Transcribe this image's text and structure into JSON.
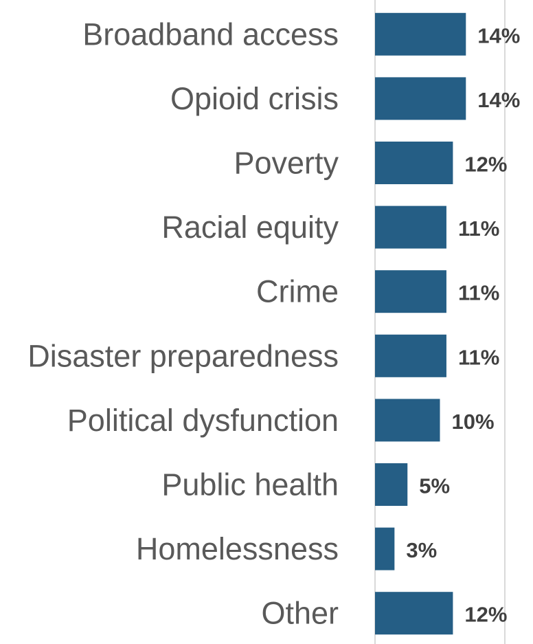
{
  "chart_data": {
    "type": "bar",
    "orientation": "horizontal",
    "categories": [
      "Broadband access",
      "Opioid crisis",
      "Poverty",
      "Racial equity",
      "Crime",
      "Disaster preparedness",
      "Political dysfunction",
      "Public health",
      "Homelessness",
      "Other"
    ],
    "values": [
      14,
      14,
      12,
      11,
      11,
      11,
      10,
      5,
      3,
      12
    ],
    "value_labels": [
      "14%",
      "14%",
      "12%",
      "11%",
      "11%",
      "11%",
      "10%",
      "5%",
      "3%",
      "12%"
    ],
    "unit": "%",
    "xlim": [
      0,
      20
    ],
    "grid": true,
    "bar_color": "#255e85"
  }
}
